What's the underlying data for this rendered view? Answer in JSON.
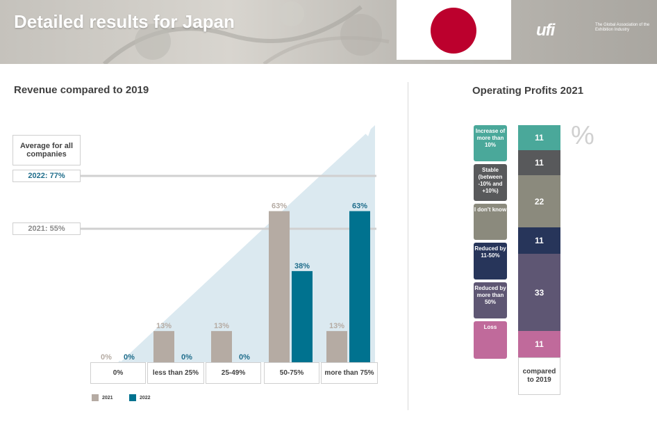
{
  "header": {
    "title": "Detailed results for Japan"
  },
  "logo": {
    "mark": "ufi",
    "tagline": "The Global Association of the Exhibition Industry"
  },
  "revenue_chart": {
    "title": "Revenue compared to 2019",
    "average_label": "Average for all companies",
    "avg_2022": "2022: 77%",
    "avg_2021": "2021: 55%",
    "legend_2021": "2021",
    "legend_2022": "2022",
    "colors": {
      "2021": "#b5aba3",
      "2022": "#00728f"
    }
  },
  "profits": {
    "title": "Operating Profits 2021",
    "percent_symbol": "%",
    "footer": "compared to 2019",
    "labels": [
      "Increase of more than 10%",
      "Stable (between -10% and +10%)",
      "I don't know",
      "Reduced by 11-50%",
      "Reduced by more than 50%",
      "Loss"
    ],
    "values": [
      "11",
      "11",
      "22",
      "11",
      "33",
      "11"
    ],
    "colors": [
      "#4aa89a",
      "#58595b",
      "#8b8a7d",
      "#27355a",
      "#5e5673",
      "#c06a9b"
    ]
  },
  "chart_data": [
    {
      "type": "bar",
      "title": "Revenue compared to 2019",
      "categories": [
        "0%",
        "less than 25%",
        "25-49%",
        "50-75%",
        "more than 75%"
      ],
      "series": [
        {
          "name": "2021",
          "values": [
            0,
            13,
            13,
            63,
            13
          ],
          "labels": [
            "0%",
            "13%",
            "13%",
            "63%",
            "13%"
          ],
          "color": "#b5aba3"
        },
        {
          "name": "2022",
          "values": [
            0,
            0,
            0,
            38,
            63
          ],
          "labels": [
            "0%",
            "0%",
            "0%",
            "38%",
            "63%"
          ],
          "color": "#00728f"
        }
      ],
      "reference_lines": [
        {
          "label": "2022: 77%",
          "value": 77
        },
        {
          "label": "2021: 55%",
          "value": 55
        }
      ],
      "ylim": [
        0,
        100
      ]
    },
    {
      "type": "bar",
      "title": "Operating Profits 2021",
      "categories": [
        "Increase of more than 10%",
        "Stable (between -10% and +10%)",
        "I don't know",
        "Reduced by 11-50%",
        "Reduced by more than 50%",
        "Loss"
      ],
      "values": [
        11,
        11,
        22,
        11,
        33,
        11
      ],
      "stacked": true
    }
  ]
}
